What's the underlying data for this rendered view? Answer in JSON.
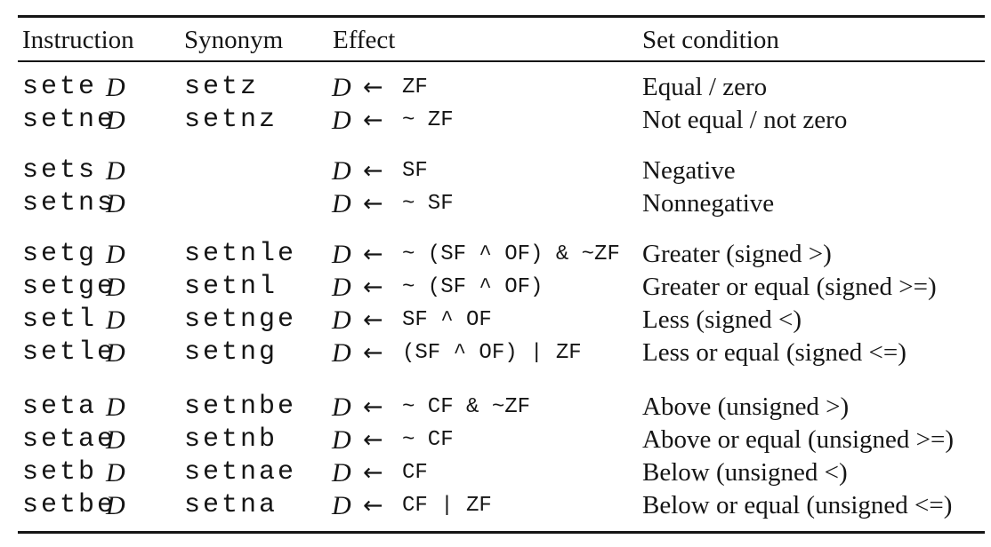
{
  "colors": {
    "text": "#151515",
    "background": "#ffffff",
    "rule": "#151515"
  },
  "table": {
    "operand": "D",
    "arrow": "←",
    "columns": [
      "Instruction",
      "Synonym",
      "Effect",
      "Set condition"
    ],
    "groups": [
      {
        "rows": [
          {
            "instruction": "sete",
            "operand": "D",
            "synonym": "setz",
            "effect": "ZF",
            "condition": "Equal / zero"
          },
          {
            "instruction": "setne",
            "operand": "D",
            "synonym": "setnz",
            "effect": "~ ZF",
            "condition": "Not equal / not zero"
          }
        ]
      },
      {
        "rows": [
          {
            "instruction": "sets",
            "operand": "D",
            "synonym": "",
            "effect": "SF",
            "condition": "Negative"
          },
          {
            "instruction": "setns",
            "operand": "D",
            "synonym": "",
            "effect": "~ SF",
            "condition": "Nonnegative"
          }
        ]
      },
      {
        "rows": [
          {
            "instruction": "setg",
            "operand": "D",
            "synonym": "setnle",
            "effect": "~ (SF ^ OF) & ~ZF",
            "condition": "Greater (signed >)"
          },
          {
            "instruction": "setge",
            "operand": "D",
            "synonym": "setnl",
            "effect": "~ (SF ^ OF)",
            "condition": "Greater or equal (signed >=)"
          },
          {
            "instruction": "setl",
            "operand": "D",
            "synonym": "setnge",
            "effect": "SF ^ OF",
            "condition": "Less (signed <)"
          },
          {
            "instruction": "setle",
            "operand": "D",
            "synonym": "setng",
            "effect": "(SF ^ OF) | ZF",
            "condition": "Less or equal (signed <=)"
          }
        ]
      },
      {
        "rows": [
          {
            "instruction": "seta",
            "operand": "D",
            "synonym": "setnbe",
            "effect": "~ CF & ~ZF",
            "condition": "Above (unsigned >)"
          },
          {
            "instruction": "setae",
            "operand": "D",
            "synonym": "setnb",
            "effect": "~ CF",
            "condition": "Above or equal (unsigned >=)"
          },
          {
            "instruction": "setb",
            "operand": "D",
            "synonym": "setnae",
            "effect": "CF",
            "condition": "Below (unsigned <)"
          },
          {
            "instruction": "setbe",
            "operand": "D",
            "synonym": "setna",
            "effect": "CF | ZF",
            "condition": "Below or equal (unsigned <=)"
          }
        ]
      }
    ]
  }
}
